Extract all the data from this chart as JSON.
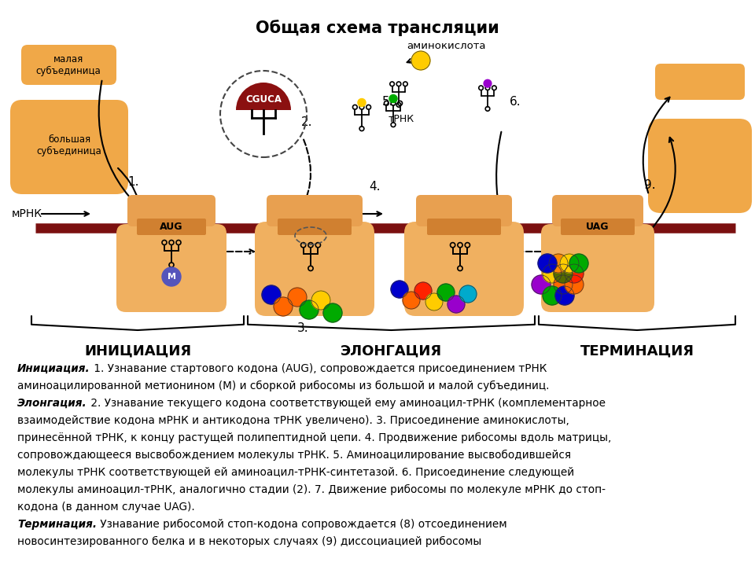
{
  "title": "Общая схема трансляции",
  "bg_color": "#ffffff",
  "mrna_color": "#7B1010",
  "ribosome_large_color": "#F0B060",
  "ribosome_small_color": "#E8A050",
  "ribosome_codon_color": "#D08030",
  "subunit_isolated_color": "#F0B060",
  "stage_labels": [
    "ИНИЦИАЦИЯ",
    "ЭЛОНГАЦИЯ",
    "ТЕРМИНАЦИЯ"
  ],
  "amino_chain1_colors": [
    "#0000CC",
    "#FF6600",
    "#FF6600",
    "#00AA00",
    "#FFCC00",
    "#00AA00"
  ],
  "amino_chain2_colors": [
    "#0000CC",
    "#FF6600",
    "#FF2200",
    "#FFCC00",
    "#00AA00",
    "#9900CC",
    "#00AACC"
  ],
  "amino_chain3_colors": [
    "#9900CC",
    "#FFCC00",
    "#FF6600",
    "#00AA00",
    "#0000CC",
    "#FF6600",
    "#FF2200",
    "#556B00",
    "#FF8800",
    "#FFCC00",
    "#0000CC",
    "#00AA00"
  ],
  "desc_lines": [
    [
      [
        "Инициация.",
        true,
        true
      ],
      [
        " 1. Узнавание стартового кодона (AUG), сопровождается присоединением тРНК",
        false,
        false
      ]
    ],
    [
      [
        "аминоацилированной метионином (М) и сборкой рибосомы из большой и малой субъединиц.",
        false,
        false
      ]
    ],
    [
      [
        "Элонгация.",
        true,
        true
      ],
      [
        " 2. Узнавание текущего кодона соответствующей ему аминоацил-тРНК (комплементарное",
        false,
        false
      ]
    ],
    [
      [
        "взаимодействие кодона мРНК и антикодона тРНК увеличено). 3. Присоединение аминокислоты,",
        false,
        false
      ]
    ],
    [
      [
        "принесённой тРНК, к концу растущей полипептидной цепи. 4. Продвижение рибосомы вдоль матрицы,",
        false,
        false
      ]
    ],
    [
      [
        "сопровождающееся высвобождением молекулы тРНК. 5. Аминоацилирование высвободившейся",
        false,
        false
      ]
    ],
    [
      [
        "молекулы тРНК соответствующей ей аминоацил-тРНК-синтетазой. 6. Присоединение следующей",
        false,
        false
      ]
    ],
    [
      [
        "молекулы аминоацил-тРНК, аналогично стадии (2). 7. Движение рибосомы по молекуле мРНК до стоп-",
        false,
        false
      ]
    ],
    [
      [
        "кодона (в данном случае UAG).",
        false,
        false
      ]
    ],
    [
      [
        "Терминация.",
        true,
        true
      ],
      [
        " Узнавание рибосомой стоп-кодона сопровождается (8) отсоединением",
        false,
        false
      ]
    ],
    [
      [
        "новосинтезированного белка и в некоторых случаях (9) диссоциацией рибосомы",
        false,
        false
      ]
    ]
  ]
}
